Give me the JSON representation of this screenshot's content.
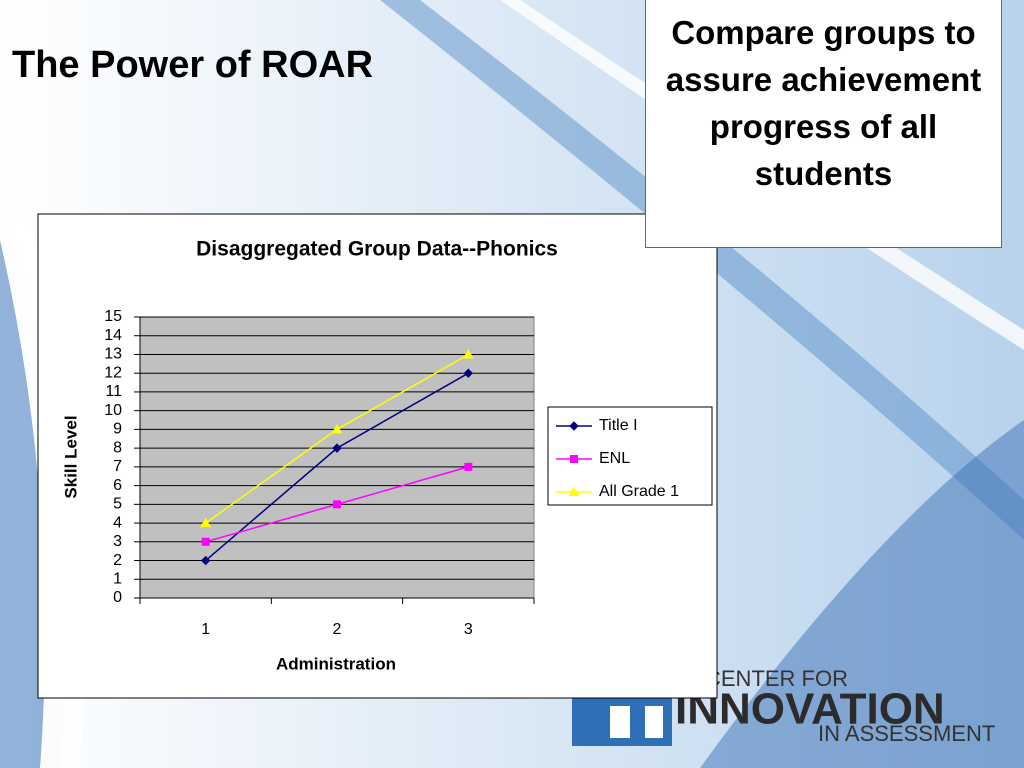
{
  "slide": {
    "title": "The Power of ROAR",
    "callout": "Compare groups to assure achievement progress of all students"
  },
  "logo": {
    "top": "CENTER FOR",
    "main": "INNOVATION",
    "bottom": "IN ASSESSMENT"
  },
  "chart_data": {
    "type": "line",
    "title": "Disaggregated Group Data--Phonics",
    "x_label": "Administration",
    "y_label": "Skill Level",
    "categories": [
      "1",
      "2",
      "3"
    ],
    "series": [
      {
        "name": "Title I",
        "color": "#000080",
        "marker": "diamond",
        "values": [
          2,
          8,
          12
        ]
      },
      {
        "name": "ENL",
        "color": "#ff00ff",
        "marker": "square",
        "values": [
          3,
          5,
          7
        ]
      },
      {
        "name": "All Grade 1",
        "color": "#ffff00",
        "marker": "triangle",
        "values": [
          4,
          9,
          13
        ]
      }
    ],
    "ylim": [
      0,
      15
    ],
    "yticks": [
      0,
      1,
      2,
      3,
      4,
      5,
      6,
      7,
      8,
      9,
      10,
      11,
      12,
      13,
      14,
      15
    ],
    "grid": true,
    "plot_background": "#c0c0c0",
    "legend": "right"
  }
}
